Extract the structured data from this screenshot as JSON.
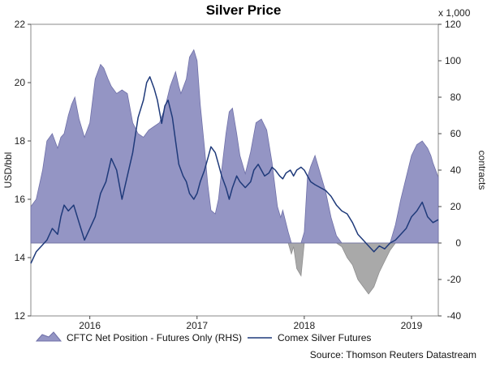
{
  "chart_data": {
    "type": "line",
    "title": "Silver Price",
    "source": "Source: Thomson Reuters Datastream",
    "left_axis": {
      "label": "USD/bbl",
      "min": 12,
      "max": 22,
      "ticks": [
        12,
        14,
        16,
        18,
        20,
        22
      ]
    },
    "right_axis": {
      "label": "contracts",
      "unit_note": "x 1,000",
      "min": -40,
      "max": 120,
      "ticks": [
        -40,
        -20,
        0,
        20,
        40,
        60,
        80,
        100,
        120
      ]
    },
    "x_axis": {
      "start": 2015.45,
      "end": 2019.25,
      "ticks": [
        {
          "label": "2016",
          "x": 2016.0
        },
        {
          "label": "2017",
          "x": 2017.0
        },
        {
          "label": "2018",
          "x": 2018.0
        },
        {
          "label": "2019",
          "x": 2019.0
        }
      ]
    },
    "series": [
      {
        "name": "CFTC Net Position - Futures Only (RHS)",
        "axis": "right",
        "style": "area",
        "color": "#9495c4",
        "negative_color": "#a9a9a9",
        "points": [
          [
            2015.45,
            20
          ],
          [
            2015.5,
            24
          ],
          [
            2015.53,
            32
          ],
          [
            2015.56,
            40
          ],
          [
            2015.6,
            56
          ],
          [
            2015.65,
            60
          ],
          [
            2015.7,
            52
          ],
          [
            2015.73,
            58
          ],
          [
            2015.76,
            60
          ],
          [
            2015.8,
            70
          ],
          [
            2015.83,
            76
          ],
          [
            2015.86,
            80
          ],
          [
            2015.9,
            68
          ],
          [
            2015.95,
            58
          ],
          [
            2016.0,
            66
          ],
          [
            2016.05,
            90
          ],
          [
            2016.1,
            98
          ],
          [
            2016.13,
            96
          ],
          [
            2016.17,
            90
          ],
          [
            2016.2,
            86
          ],
          [
            2016.25,
            82
          ],
          [
            2016.3,
            84
          ],
          [
            2016.35,
            82
          ],
          [
            2016.4,
            66
          ],
          [
            2016.45,
            60
          ],
          [
            2016.5,
            58
          ],
          [
            2016.55,
            62
          ],
          [
            2016.6,
            64
          ],
          [
            2016.65,
            66
          ],
          [
            2016.7,
            74
          ],
          [
            2016.75,
            86
          ],
          [
            2016.8,
            94
          ],
          [
            2016.83,
            86
          ],
          [
            2016.85,
            82
          ],
          [
            2016.9,
            90
          ],
          [
            2016.93,
            102
          ],
          [
            2016.97,
            106
          ],
          [
            2017.0,
            100
          ],
          [
            2017.03,
            76
          ],
          [
            2017.07,
            52
          ],
          [
            2017.1,
            32
          ],
          [
            2017.13,
            18
          ],
          [
            2017.17,
            16
          ],
          [
            2017.2,
            24
          ],
          [
            2017.23,
            40
          ],
          [
            2017.27,
            60
          ],
          [
            2017.3,
            72
          ],
          [
            2017.33,
            74
          ],
          [
            2017.37,
            60
          ],
          [
            2017.4,
            48
          ],
          [
            2017.45,
            38
          ],
          [
            2017.5,
            50
          ],
          [
            2017.55,
            66
          ],
          [
            2017.6,
            68
          ],
          [
            2017.65,
            62
          ],
          [
            2017.7,
            44
          ],
          [
            2017.75,
            20
          ],
          [
            2017.78,
            14
          ],
          [
            2017.8,
            18
          ],
          [
            2017.85,
            6
          ],
          [
            2017.88,
            -6
          ],
          [
            2017.9,
            -2
          ],
          [
            2017.93,
            -14
          ],
          [
            2017.97,
            -18
          ],
          [
            2018.0,
            6
          ],
          [
            2018.03,
            36
          ],
          [
            2018.06,
            42
          ],
          [
            2018.1,
            48
          ],
          [
            2018.15,
            38
          ],
          [
            2018.2,
            28
          ],
          [
            2018.25,
            14
          ],
          [
            2018.3,
            4
          ],
          [
            2018.35,
            -2
          ],
          [
            2018.4,
            -8
          ],
          [
            2018.45,
            -12
          ],
          [
            2018.5,
            -20
          ],
          [
            2018.55,
            -24
          ],
          [
            2018.6,
            -28
          ],
          [
            2018.65,
            -24
          ],
          [
            2018.7,
            -16
          ],
          [
            2018.75,
            -10
          ],
          [
            2018.8,
            -4
          ],
          [
            2018.85,
            10
          ],
          [
            2018.9,
            24
          ],
          [
            2018.95,
            36
          ],
          [
            2019.0,
            48
          ],
          [
            2019.05,
            54
          ],
          [
            2019.1,
            56
          ],
          [
            2019.15,
            52
          ],
          [
            2019.18,
            48
          ],
          [
            2019.2,
            44
          ],
          [
            2019.25,
            36
          ]
        ]
      },
      {
        "name": "Comex Silver Futures",
        "axis": "left",
        "style": "line",
        "color": "#1f3a7a",
        "points": [
          [
            2015.45,
            13.8
          ],
          [
            2015.5,
            14.2
          ],
          [
            2015.55,
            14.4
          ],
          [
            2015.6,
            14.6
          ],
          [
            2015.65,
            15.0
          ],
          [
            2015.7,
            14.8
          ],
          [
            2015.73,
            15.4
          ],
          [
            2015.76,
            15.8
          ],
          [
            2015.8,
            15.6
          ],
          [
            2015.85,
            15.8
          ],
          [
            2015.9,
            15.2
          ],
          [
            2015.95,
            14.6
          ],
          [
            2016.0,
            15.0
          ],
          [
            2016.05,
            15.4
          ],
          [
            2016.1,
            16.2
          ],
          [
            2016.15,
            16.6
          ],
          [
            2016.2,
            17.4
          ],
          [
            2016.25,
            17.0
          ],
          [
            2016.3,
            16.0
          ],
          [
            2016.35,
            16.8
          ],
          [
            2016.4,
            17.6
          ],
          [
            2016.45,
            18.8
          ],
          [
            2016.5,
            19.4
          ],
          [
            2016.53,
            20.0
          ],
          [
            2016.56,
            20.2
          ],
          [
            2016.6,
            19.8
          ],
          [
            2016.63,
            19.4
          ],
          [
            2016.67,
            18.6
          ],
          [
            2016.7,
            19.2
          ],
          [
            2016.73,
            19.4
          ],
          [
            2016.77,
            18.8
          ],
          [
            2016.8,
            18.0
          ],
          [
            2016.83,
            17.2
          ],
          [
            2016.87,
            16.8
          ],
          [
            2016.9,
            16.6
          ],
          [
            2016.93,
            16.2
          ],
          [
            2016.97,
            16.0
          ],
          [
            2017.0,
            16.2
          ],
          [
            2017.03,
            16.6
          ],
          [
            2017.07,
            17.0
          ],
          [
            2017.1,
            17.4
          ],
          [
            2017.13,
            17.8
          ],
          [
            2017.17,
            17.6
          ],
          [
            2017.2,
            17.2
          ],
          [
            2017.23,
            16.8
          ],
          [
            2017.27,
            16.4
          ],
          [
            2017.3,
            16.0
          ],
          [
            2017.33,
            16.4
          ],
          [
            2017.37,
            16.8
          ],
          [
            2017.4,
            16.6
          ],
          [
            2017.45,
            16.4
          ],
          [
            2017.5,
            16.6
          ],
          [
            2017.53,
            17.0
          ],
          [
            2017.57,
            17.2
          ],
          [
            2017.6,
            17.0
          ],
          [
            2017.63,
            16.8
          ],
          [
            2017.67,
            16.9
          ],
          [
            2017.7,
            17.1
          ],
          [
            2017.73,
            17.0
          ],
          [
            2017.77,
            16.8
          ],
          [
            2017.8,
            16.7
          ],
          [
            2017.83,
            16.9
          ],
          [
            2017.87,
            17.0
          ],
          [
            2017.9,
            16.8
          ],
          [
            2017.93,
            17.0
          ],
          [
            2017.97,
            17.1
          ],
          [
            2018.0,
            17.0
          ],
          [
            2018.03,
            16.8
          ],
          [
            2018.06,
            16.6
          ],
          [
            2018.1,
            16.5
          ],
          [
            2018.15,
            16.4
          ],
          [
            2018.2,
            16.3
          ],
          [
            2018.25,
            16.1
          ],
          [
            2018.3,
            15.8
          ],
          [
            2018.35,
            15.6
          ],
          [
            2018.4,
            15.5
          ],
          [
            2018.45,
            15.2
          ],
          [
            2018.5,
            14.8
          ],
          [
            2018.55,
            14.6
          ],
          [
            2018.6,
            14.4
          ],
          [
            2018.65,
            14.2
          ],
          [
            2018.7,
            14.4
          ],
          [
            2018.75,
            14.3
          ],
          [
            2018.8,
            14.5
          ],
          [
            2018.85,
            14.6
          ],
          [
            2018.9,
            14.8
          ],
          [
            2018.95,
            15.0
          ],
          [
            2019.0,
            15.4
          ],
          [
            2019.05,
            15.6
          ],
          [
            2019.1,
            15.9
          ],
          [
            2019.15,
            15.4
          ],
          [
            2019.2,
            15.2
          ],
          [
            2019.25,
            15.3
          ]
        ]
      }
    ]
  }
}
